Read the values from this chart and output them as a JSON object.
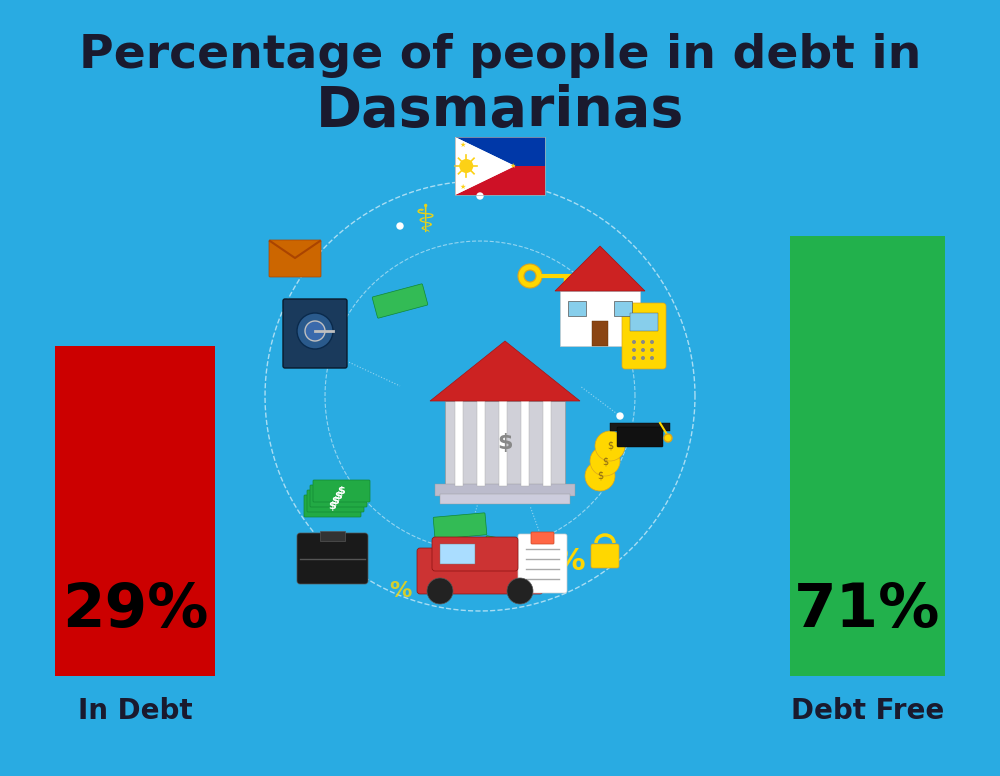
{
  "title_line1": "Percentage of people in debt in",
  "title_line2": "Dasmarinas",
  "background_color": "#29ABE2",
  "bar1_label": "29%",
  "bar1_color": "#CC0000",
  "bar1_text": "In Debt",
  "bar2_label": "71%",
  "bar2_color": "#22B14C",
  "bar2_text": "Debt Free",
  "title_color": "#1a1a2e",
  "label_color": "#1a1a2e",
  "title_fontsize": 34,
  "subtitle_fontsize": 40,
  "pct_fontsize": 44,
  "bar_label_fontsize": 20
}
